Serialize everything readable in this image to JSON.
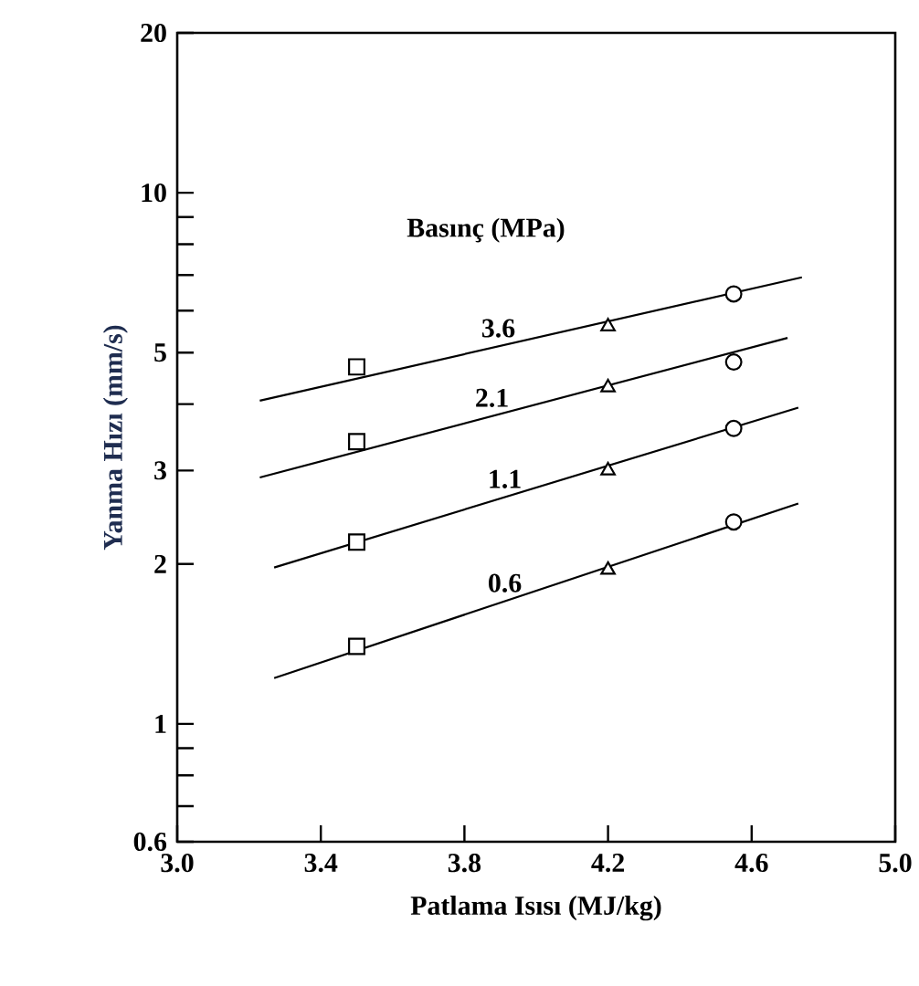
{
  "chart_data": {
    "type": "line",
    "xlabel": "Patlama Isısı (MJ/kg)",
    "ylabel": "Yanma Hızı (mm/s)",
    "legend_title": "Basınç (MPa)",
    "log": "y",
    "xlim": [
      3.0,
      5.0
    ],
    "ylim": [
      0.6,
      20
    ],
    "xticks": [
      {
        "value": 3.0,
        "label": "3.0"
      },
      3.4,
      3.8,
      4.2,
      4.6,
      {
        "value": 5.0,
        "label": "5.0"
      }
    ],
    "yticks": [
      0.6,
      {
        "value": 0.7,
        "label": null
      },
      {
        "value": 0.8,
        "label": null
      },
      {
        "value": 0.9,
        "label": null
      },
      1,
      2,
      3,
      {
        "value": 4,
        "label": null
      },
      5,
      {
        "value": 6,
        "label": null
      },
      {
        "value": 7,
        "label": null
      },
      {
        "value": 8,
        "label": null
      },
      {
        "value": 9,
        "label": null
      },
      10,
      20
    ],
    "series": [
      {
        "name": "3.6",
        "color": "#000000",
        "x": [
          3.23,
          4.74
        ],
        "values": [
          4.06,
          6.93
        ]
      },
      {
        "name": "2.1",
        "color": "#000000",
        "x": [
          3.23,
          4.7
        ],
        "values": [
          2.91,
          5.33
        ]
      },
      {
        "name": "1.1",
        "color": "#000000",
        "x": [
          3.27,
          4.73
        ],
        "values": [
          1.97,
          3.94
        ]
      },
      {
        "name": "0.6",
        "color": "#000000",
        "x": [
          3.27,
          4.73
        ],
        "values": [
          1.22,
          2.6
        ]
      },
      {
        "type": "scatter",
        "marker": "square",
        "color": "#000000",
        "x": [
          3.5,
          3.5,
          3.5,
          3.5
        ],
        "values": [
          4.7,
          3.4,
          2.2,
          1.4
        ]
      },
      {
        "type": "scatter",
        "marker": "triangle",
        "color": "#000000",
        "x": [
          4.2,
          4.2,
          4.2,
          4.2
        ],
        "values": [
          5.6,
          4.3,
          3.0,
          1.95
        ]
      },
      {
        "type": "scatter",
        "marker": "circle",
        "color": "#000000",
        "x": [
          4.55,
          4.55,
          4.55,
          4.55
        ],
        "values": [
          6.45,
          4.8,
          3.6,
          2.4
        ]
      }
    ]
  }
}
